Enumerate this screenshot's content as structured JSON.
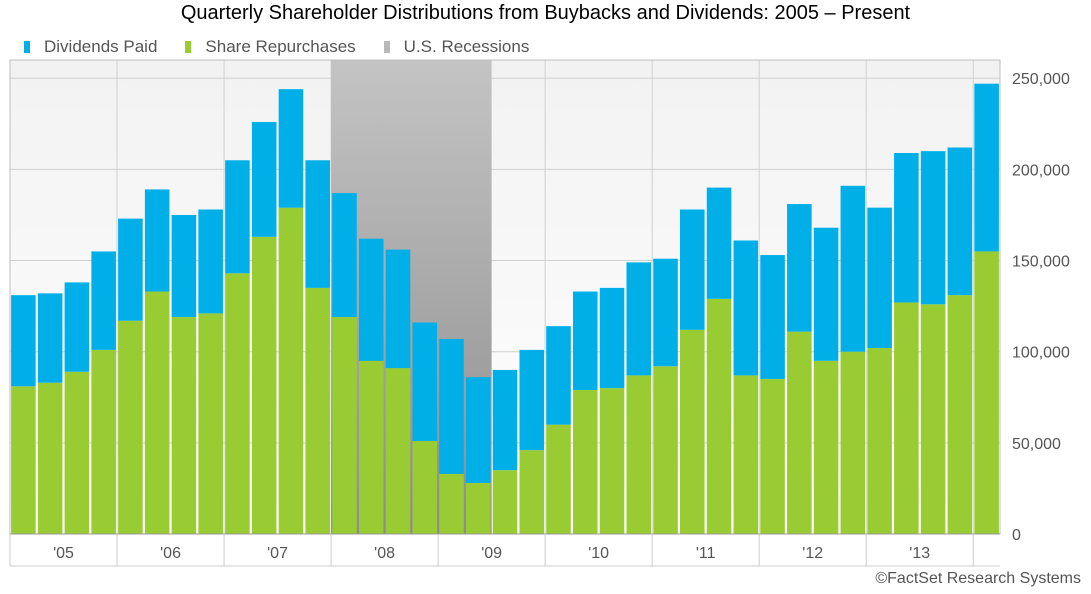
{
  "title": "Quarterly Shareholder Distributions from Buybacks and Dividends: 2005 – Present",
  "credit": "©FactSet Research Systems",
  "legend": [
    {
      "label": "Dividends Paid",
      "color": "#00aee8"
    },
    {
      "label": "Share Repurchases",
      "color": "#99cc33"
    },
    {
      "label": "U.S. Recessions",
      "color": "#b8b8b8"
    }
  ],
  "chart_data": {
    "type": "bar",
    "stacked": true,
    "title": "Quarterly Shareholder Distributions from Buybacks and Dividends: 2005 – Present",
    "categories": [
      "Q1 2005",
      "Q2 2005",
      "Q3 2005",
      "Q4 2005",
      "Q1 2006",
      "Q2 2006",
      "Q3 2006",
      "Q4 2006",
      "Q1 2007",
      "Q2 2007",
      "Q3 2007",
      "Q4 2007",
      "Q1 2008",
      "Q2 2008",
      "Q3 2008",
      "Q4 2008",
      "Q1 2009",
      "Q2 2009",
      "Q3 2009",
      "Q4 2009",
      "Q1 2010",
      "Q2 2010",
      "Q3 2010",
      "Q4 2010",
      "Q1 2011",
      "Q2 2011",
      "Q3 2011",
      "Q4 2011",
      "Q1 2012",
      "Q2 2012",
      "Q3 2012",
      "Q4 2012",
      "Q1 2013",
      "Q2 2013",
      "Q3 2013",
      "Q4 2013",
      "Q1 2014"
    ],
    "x_tick_labels": [
      "'05",
      "'06",
      "'07",
      "'08",
      "'09",
      "'10",
      "'11",
      "'12",
      "'13"
    ],
    "series": [
      {
        "name": "Share Repurchases",
        "color": "#99cc33",
        "values": [
          81000,
          83000,
          89000,
          101000,
          117000,
          133000,
          119000,
          121000,
          143000,
          163000,
          179000,
          135000,
          119000,
          95000,
          91000,
          51000,
          33000,
          28000,
          35000,
          46000,
          60000,
          79000,
          80000,
          87000,
          92000,
          112000,
          129000,
          87000,
          85000,
          111000,
          95000,
          100000,
          102000,
          127000,
          126000,
          131000,
          155000
        ]
      },
      {
        "name": "Dividends Paid",
        "color": "#00aee8",
        "values": [
          50000,
          49000,
          49000,
          54000,
          56000,
          56000,
          56000,
          57000,
          62000,
          63000,
          65000,
          70000,
          68000,
          67000,
          65000,
          65000,
          74000,
          58000,
          55000,
          55000,
          54000,
          54000,
          55000,
          62000,
          59000,
          66000,
          61000,
          74000,
          68000,
          70000,
          73000,
          91000,
          77000,
          82000,
          84000,
          81000,
          92000
        ]
      }
    ],
    "recession": {
      "label": "U.S. Recessions",
      "start": "Q1 2008",
      "end": "Q2 2009"
    },
    "ylim": [
      0,
      260000
    ],
    "yticks": [
      0,
      50000,
      100000,
      150000,
      200000,
      250000
    ],
    "ytick_labels": [
      "0",
      "50,000",
      "100,000",
      "150,000",
      "200,000",
      "250,000"
    ],
    "y_axis_side": "right",
    "legend_position": "top-left",
    "grid": true
  }
}
